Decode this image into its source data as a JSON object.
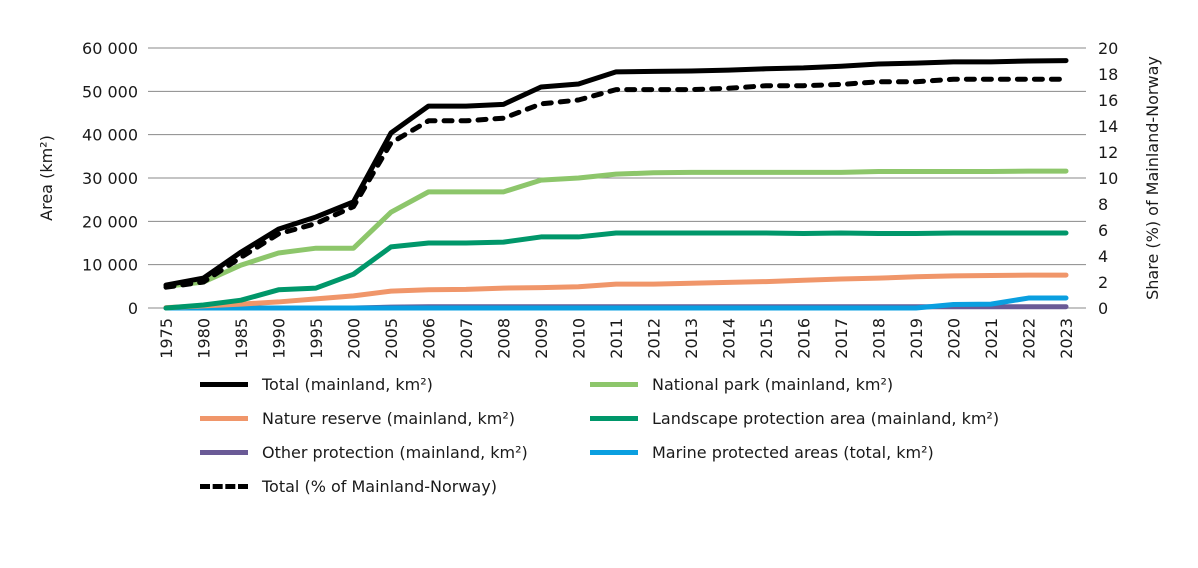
{
  "chart_data": {
    "type": "line",
    "ylabel": "Area (km²)",
    "y2label": "Share (%) of Mainland-Norway",
    "ylim": [
      0,
      60000
    ],
    "y2lim": [
      0,
      20
    ],
    "yticks": [
      "0",
      "10 000",
      "20 000",
      "30 000",
      "40 000",
      "50 000",
      "60 000"
    ],
    "y2ticks": [
      "0",
      "2",
      "4",
      "6",
      "8",
      "10",
      "12",
      "14",
      "16",
      "18",
      "20"
    ],
    "grid": true,
    "legend_position": "bottom",
    "categories": [
      "1975",
      "1980",
      "1985",
      "1990",
      "1995",
      "2000",
      "2005",
      "2006",
      "2007",
      "2008",
      "2009",
      "2010",
      "2011",
      "2012",
      "2013",
      "2014",
      "2015",
      "2016",
      "2017",
      "2018",
      "2019",
      "2020",
      "2021",
      "2022",
      "2023"
    ],
    "series": [
      {
        "name": "Total (mainland, km²)",
        "color": "#000000",
        "axis": "left",
        "dash": false,
        "values": [
          5300,
          6900,
          12900,
          18200,
          21000,
          24500,
          40400,
          46600,
          46600,
          47000,
          51000,
          51700,
          54500,
          54600,
          54700,
          54900,
          55200,
          55400,
          55800,
          56300,
          56500,
          56800,
          56800,
          57000,
          57100
        ]
      },
      {
        "name": "National park (mainland, km²)",
        "color": "#8dc66b",
        "axis": "left",
        "dash": false,
        "values": [
          5000,
          6000,
          9900,
          12700,
          13800,
          13800,
          22100,
          26800,
          26800,
          26800,
          29500,
          30000,
          30900,
          31200,
          31300,
          31300,
          31300,
          31300,
          31300,
          31500,
          31500,
          31500,
          31500,
          31600,
          31600
        ]
      },
      {
        "name": "Nature reserve (mainland, km²)",
        "color": "#f0966a",
        "axis": "left",
        "dash": false,
        "values": [
          100,
          500,
          900,
          1400,
          2100,
          2800,
          3900,
          4200,
          4300,
          4600,
          4700,
          4900,
          5500,
          5500,
          5700,
          5900,
          6100,
          6400,
          6700,
          6900,
          7200,
          7400,
          7500,
          7600,
          7600
        ]
      },
      {
        "name": "Landscape protection area (mainland, km²)",
        "color": "#00976a",
        "axis": "left",
        "dash": false,
        "values": [
          0,
          700,
          1800,
          4200,
          4600,
          7800,
          14100,
          15000,
          15000,
          15200,
          16400,
          16400,
          17300,
          17300,
          17300,
          17300,
          17300,
          17200,
          17300,
          17200,
          17200,
          17300,
          17300,
          17300,
          17300
        ]
      },
      {
        "name": "Other protection (mainland, km²)",
        "color": "#6a5a96",
        "axis": "left",
        "dash": false,
        "values": [
          0,
          0,
          0,
          0,
          0,
          0,
          200,
          300,
          300,
          300,
          300,
          300,
          300,
          300,
          300,
          300,
          300,
          300,
          300,
          300,
          300,
          300,
          300,
          300,
          300
        ]
      },
      {
        "name": "Marine protected areas (total, km²)",
        "color": "#0a9fe0",
        "axis": "left",
        "dash": false,
        "values": [
          0,
          0,
          0,
          0,
          0,
          0,
          0,
          0,
          0,
          0,
          0,
          0,
          0,
          0,
          0,
          0,
          0,
          0,
          0,
          0,
          0,
          800,
          900,
          2300,
          2300
        ]
      },
      {
        "name": "Total (% of Mainland-Norway)",
        "color": "#000000",
        "axis": "right",
        "dash": true,
        "values": [
          1.6,
          2.0,
          3.9,
          5.7,
          6.5,
          7.8,
          12.7,
          14.4,
          14.4,
          14.6,
          15.7,
          16.0,
          16.8,
          16.8,
          16.8,
          16.9,
          17.1,
          17.1,
          17.2,
          17.4,
          17.4,
          17.6,
          17.6,
          17.6,
          17.6
        ]
      }
    ]
  }
}
